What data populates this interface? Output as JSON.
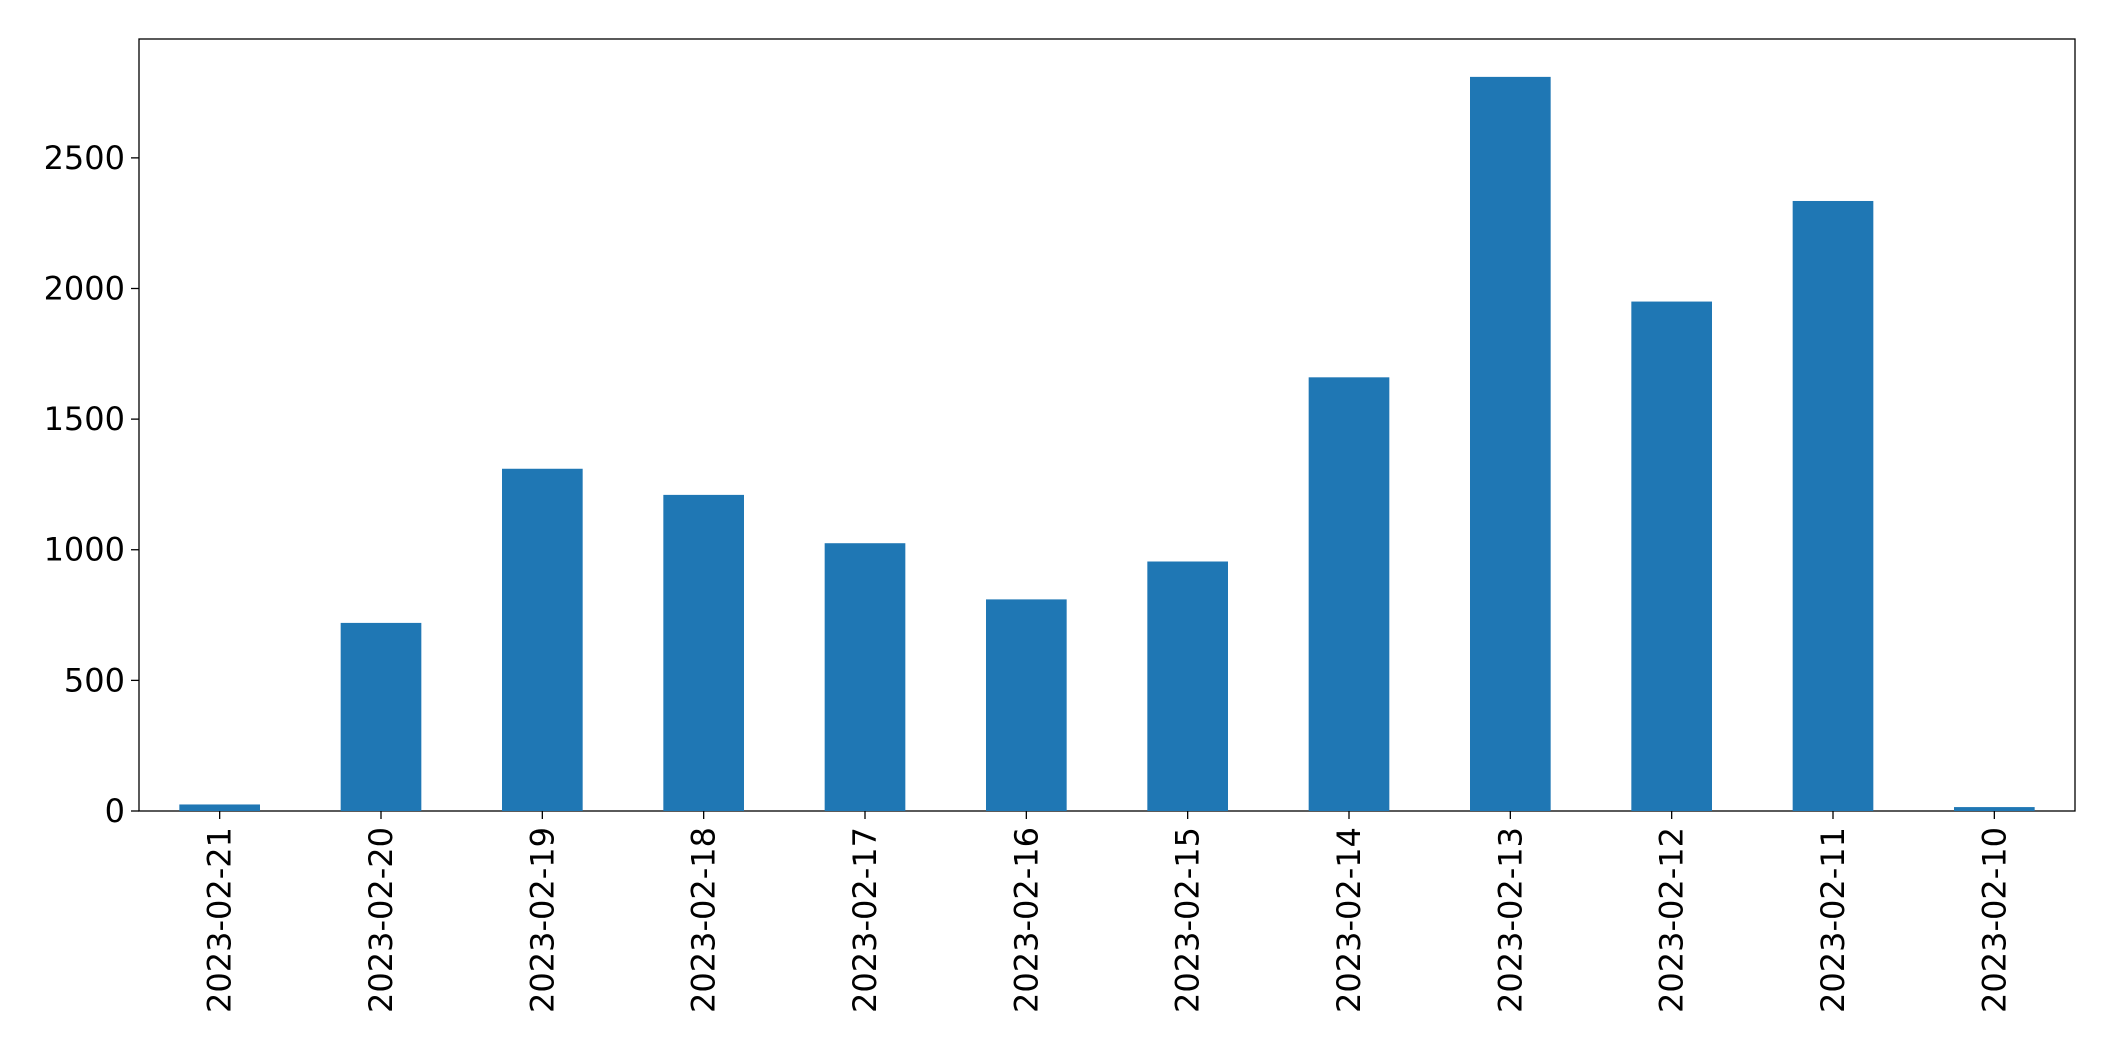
{
  "chart_data": {
    "type": "bar",
    "categories": [
      "2023-02-21",
      "2023-02-20",
      "2023-02-19",
      "2023-02-18",
      "2023-02-17",
      "2023-02-16",
      "2023-02-15",
      "2023-02-14",
      "2023-02-13",
      "2023-02-12",
      "2023-02-11",
      "2023-02-10"
    ],
    "values": [
      25,
      720,
      1310,
      1210,
      1025,
      810,
      955,
      1660,
      2810,
      1950,
      2335,
      15
    ],
    "color": "#1f77b4",
    "ylim": [
      0,
      2955
    ],
    "yticks": [
      0,
      500,
      1000,
      1500,
      2000,
      2500
    ],
    "grid": false
  }
}
